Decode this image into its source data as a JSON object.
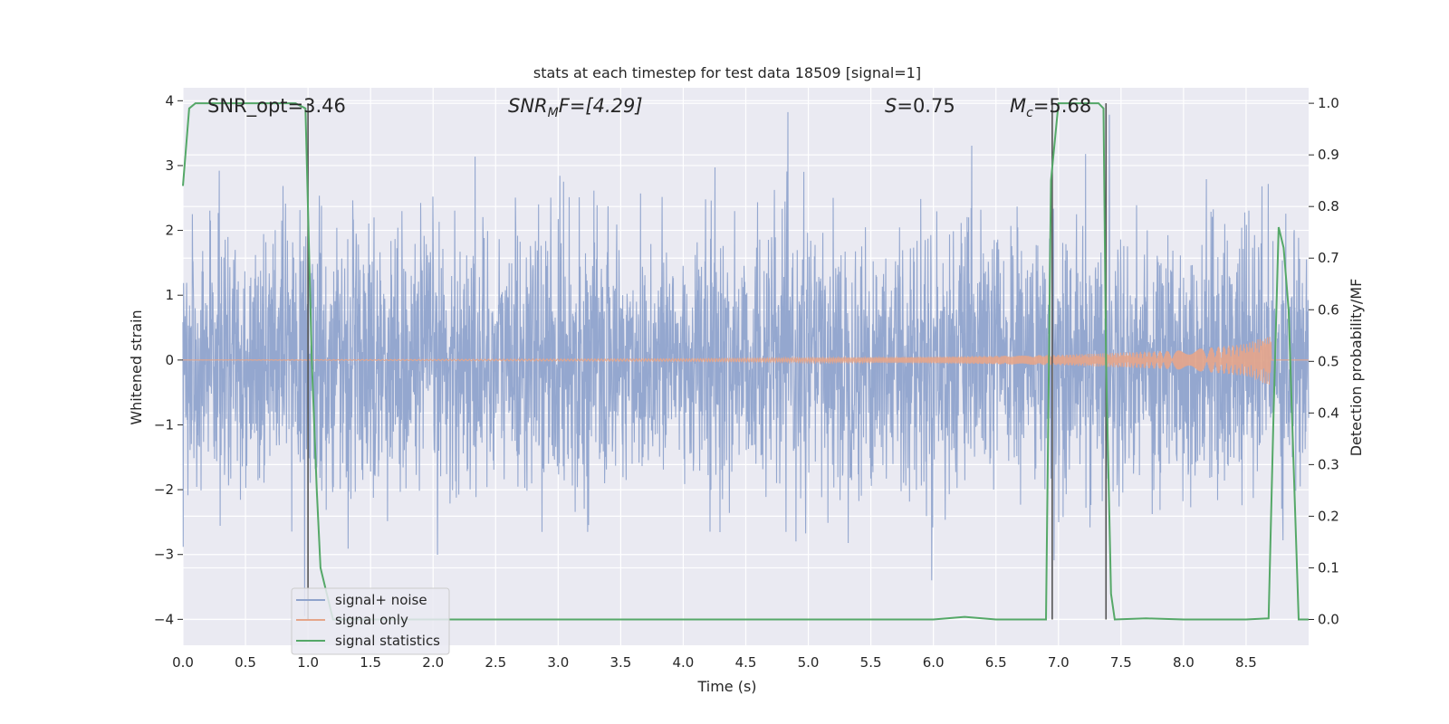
{
  "chart_data": {
    "type": "line",
    "title": "stats at each timestep for test data 18509 [signal=1]",
    "xlabel": "Time (s)",
    "ylabel_left": "Whitened strain",
    "ylabel_right": "Detection probability/MF",
    "xlim": [
      0.0,
      9.0
    ],
    "ylim_left": [
      -4.4,
      4.2
    ],
    "ylim_right": [
      -0.05,
      1.03
    ],
    "x_ticks": [
      "0.0",
      "0.5",
      "1.0",
      "1.5",
      "2.0",
      "2.5",
      "3.0",
      "3.5",
      "4.0",
      "4.5",
      "5.0",
      "5.5",
      "6.0",
      "6.5",
      "7.0",
      "7.5",
      "8.0",
      "8.5"
    ],
    "y_ticks_left": [
      "−4",
      "−3",
      "−2",
      "−1",
      "0",
      "1",
      "2",
      "3",
      "4"
    ],
    "y_ticks_right": [
      "0.0",
      "0.1",
      "0.2",
      "0.3",
      "0.4",
      "0.5",
      "0.6",
      "0.7",
      "0.8",
      "0.9",
      "1.0"
    ],
    "grid": true,
    "legend_position": "bottom-left",
    "annotations": {
      "snr_opt": "SNR_opt=3.46",
      "snr_mf_name": "SNR",
      "snr_mf_sub": "M",
      "snr_mf_rest": "F=[4.29]",
      "s_name": "S",
      "s_rest": "=0.75",
      "mc_name": "M",
      "mc_sub": "c",
      "mc_rest": "=5.68"
    },
    "series": [
      {
        "name": "signal+ noise",
        "color": "#8fa3cc",
        "axis": "left",
        "description_values": "whitened noise, amplitude roughly ±2 with spikes to ±3.9, t from 0.0 to 9.0 s"
      },
      {
        "name": "signal only",
        "color": "#e5a58a",
        "axis": "left",
        "envelope": {
          "x": [
            0.0,
            4.0,
            6.0,
            7.0,
            8.0,
            8.5,
            8.7
          ],
          "y": [
            0.0,
            0.02,
            0.05,
            0.08,
            0.15,
            0.25,
            0.4
          ]
        }
      },
      {
        "name": "signal statistics",
        "color": "#55a868",
        "axis": "right",
        "x": [
          0.0,
          0.05,
          0.1,
          0.15,
          0.2,
          0.5,
          0.9,
          0.98,
          1.03,
          1.07,
          1.1,
          1.2,
          2.0,
          3.0,
          4.0,
          5.0,
          6.0,
          6.25,
          6.5,
          6.9,
          6.94,
          6.98,
          7.0,
          7.2,
          7.32,
          7.36,
          7.38,
          7.42,
          7.45,
          7.7,
          8.0,
          8.5,
          8.68,
          8.72,
          8.76,
          8.8,
          8.84,
          8.88,
          8.92,
          9.0
        ],
        "y": [
          0.84,
          0.99,
          1.0,
          1.0,
          1.0,
          1.0,
          1.0,
          0.99,
          0.5,
          0.25,
          0.1,
          0.0,
          0.0,
          0.0,
          0.0,
          0.0,
          0.0,
          0.005,
          0.0,
          0.0,
          0.85,
          0.95,
          1.0,
          1.0,
          1.0,
          0.99,
          0.5,
          0.05,
          0.0,
          0.002,
          0.0,
          0.0,
          0.002,
          0.4,
          0.76,
          0.72,
          0.6,
          0.3,
          0.0,
          0.0
        ]
      }
    ],
    "vertical_markers": {
      "color": "#555555",
      "axis": "right",
      "segments": [
        {
          "x": 1.0,
          "y0": 0.0,
          "y1": 1.0
        },
        {
          "x": 6.95,
          "y0": 0.0,
          "y1": 1.0
        },
        {
          "x": 7.38,
          "y0": 0.0,
          "y1": 1.0
        }
      ]
    }
  }
}
